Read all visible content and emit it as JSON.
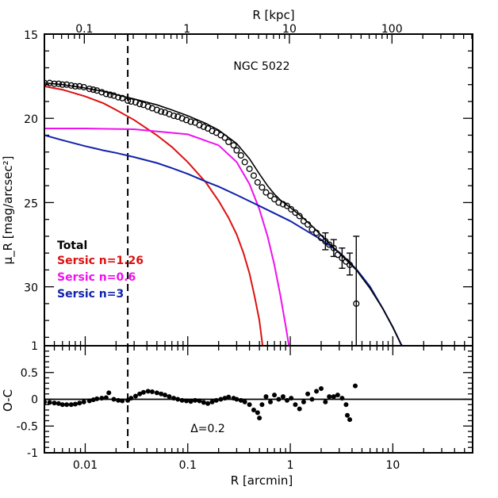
{
  "chart_data": [
    {
      "type": "line",
      "panel": "surface-brightness-profile",
      "title": "NGC 5022",
      "xlabel": "",
      "x_scale": "log",
      "xlim": [
        0.004,
        60
      ],
      "ylabel": "μ_R [mag/arcsec²]",
      "ylim": [
        15,
        34
      ],
      "y_inverted": true,
      "y_ticks": [
        15,
        20,
        25,
        30
      ],
      "top_axis": {
        "label": "R [kpc]",
        "ticks": [
          {
            "value": 0.1,
            "label": "0.1"
          },
          {
            "value": 1,
            "label": "1"
          },
          {
            "value": 10,
            "label": "10"
          },
          {
            "value": 100,
            "label": "100"
          }
        ]
      },
      "vertical_line": {
        "x": 0.026,
        "style": "dashed"
      },
      "legend": {
        "placement": "lower-left",
        "entries": [
          {
            "label": "Total",
            "color": "#000000"
          },
          {
            "label": "Sersic n=1.26",
            "color": "#dd1111"
          },
          {
            "label": "Sersic n=0.6",
            "color": "#ee11ee"
          },
          {
            "label": "Sersic n=3",
            "color": "#1122aa"
          }
        ]
      },
      "series": [
        {
          "name": "Total",
          "color": "#000000",
          "x": [
            0.004,
            0.006,
            0.01,
            0.015,
            0.02,
            0.03,
            0.05,
            0.07,
            0.1,
            0.15,
            0.2,
            0.3,
            0.4,
            0.5,
            0.6,
            0.7,
            0.8,
            1.0,
            1.3,
            1.7,
            2.2,
            3.0,
            4.4,
            6,
            8,
            10,
            12,
            14
          ],
          "y": [
            17.9,
            18.0,
            18.2,
            18.4,
            18.6,
            18.85,
            19.2,
            19.5,
            19.85,
            20.3,
            20.7,
            21.5,
            22.4,
            23.3,
            24.0,
            24.5,
            24.85,
            25.3,
            25.85,
            26.5,
            27.2,
            28.0,
            29.0,
            30.1,
            31.3,
            32.4,
            33.4,
            34.0
          ]
        },
        {
          "name": "Sersic n=1.26",
          "color": "#dd1111",
          "x": [
            0.004,
            0.006,
            0.01,
            0.015,
            0.02,
            0.03,
            0.05,
            0.07,
            0.1,
            0.15,
            0.2,
            0.25,
            0.3,
            0.35,
            0.4,
            0.45,
            0.5,
            0.55
          ],
          "y": [
            18.1,
            18.3,
            18.7,
            19.1,
            19.5,
            20.1,
            21.0,
            21.7,
            22.6,
            23.8,
            24.9,
            25.9,
            26.9,
            28.0,
            29.2,
            30.6,
            32.0,
            34.0
          ]
        },
        {
          "name": "Sersic n=0.6",
          "color": "#ee11ee",
          "x": [
            0.004,
            0.01,
            0.03,
            0.1,
            0.2,
            0.3,
            0.4,
            0.5,
            0.6,
            0.7,
            0.8,
            0.9,
            1.0
          ],
          "y": [
            20.6,
            20.6,
            20.65,
            20.95,
            21.6,
            22.6,
            23.9,
            25.4,
            27.0,
            28.7,
            30.5,
            32.3,
            34.0
          ]
        },
        {
          "name": "Sersic n=3",
          "color": "#1122aa",
          "x": [
            0.004,
            0.006,
            0.01,
            0.015,
            0.02,
            0.03,
            0.05,
            0.07,
            0.1,
            0.15,
            0.2,
            0.3,
            0.5,
            1.0,
            2.0,
            3.0,
            4.4,
            6,
            8,
            10,
            12,
            14
          ],
          "y": [
            21.0,
            21.3,
            21.65,
            21.9,
            22.05,
            22.3,
            22.65,
            22.95,
            23.3,
            23.75,
            24.05,
            24.55,
            25.2,
            26.1,
            27.2,
            27.95,
            28.95,
            30.0,
            31.3,
            32.4,
            33.4,
            34.0
          ]
        }
      ],
      "observed_points": {
        "x": [
          0.004,
          0.0045,
          0.005,
          0.0055,
          0.006,
          0.0066,
          0.0073,
          0.008,
          0.0088,
          0.0097,
          0.011,
          0.012,
          0.013,
          0.0145,
          0.016,
          0.0175,
          0.019,
          0.021,
          0.023,
          0.026,
          0.028,
          0.031,
          0.034,
          0.037,
          0.041,
          0.045,
          0.05,
          0.055,
          0.06,
          0.066,
          0.073,
          0.08,
          0.088,
          0.097,
          0.107,
          0.118,
          0.13,
          0.143,
          0.157,
          0.173,
          0.19,
          0.21,
          0.23,
          0.25,
          0.28,
          0.3,
          0.33,
          0.36,
          0.4,
          0.44,
          0.48,
          0.53,
          0.58,
          0.64,
          0.7,
          0.77,
          0.85,
          0.93,
          1.02,
          1.12,
          1.23,
          1.35,
          1.48,
          1.63,
          1.8,
          2.0,
          2.2,
          2.4,
          2.65,
          2.9,
          3.2,
          3.5,
          3.8,
          4.4
        ],
        "y": [
          17.9,
          17.9,
          17.95,
          17.95,
          18.0,
          18.0,
          18.05,
          18.1,
          18.1,
          18.15,
          18.25,
          18.3,
          18.35,
          18.45,
          18.55,
          18.6,
          18.65,
          18.75,
          18.8,
          18.95,
          19.0,
          19.05,
          19.15,
          19.2,
          19.3,
          19.4,
          19.5,
          19.6,
          19.65,
          19.75,
          19.85,
          19.9,
          20.0,
          20.1,
          20.2,
          20.25,
          20.4,
          20.5,
          20.6,
          20.75,
          20.85,
          21.0,
          21.15,
          21.4,
          21.6,
          21.9,
          22.2,
          22.6,
          23.0,
          23.4,
          23.8,
          24.1,
          24.4,
          24.6,
          24.8,
          25.0,
          25.1,
          25.2,
          25.4,
          25.6,
          25.8,
          26.1,
          26.3,
          26.6,
          26.8,
          27.1,
          27.3,
          27.5,
          27.7,
          28.1,
          28.3,
          28.5,
          28.7,
          31.0
        ],
        "error_bars": [
          {
            "x": 2.2,
            "low": 26.8,
            "high": 27.8
          },
          {
            "x": 2.65,
            "low": 27.2,
            "high": 28.2
          },
          {
            "x": 3.2,
            "low": 27.7,
            "high": 28.9
          },
          {
            "x": 3.8,
            "low": 28.0,
            "high": 29.3
          },
          {
            "x": 4.4,
            "low": 27.0,
            "high": 34.0
          }
        ]
      }
    },
    {
      "type": "scatter",
      "panel": "residuals",
      "xlabel": "R [arcmin]",
      "ylabel": "O-C",
      "x_scale": "log",
      "xlim": [
        0.004,
        60
      ],
      "ylim": [
        -1,
        1
      ],
      "x_ticks": [
        {
          "value": 0.01,
          "label": "0.01"
        },
        {
          "value": 0.1,
          "label": "0.1"
        },
        {
          "value": 1,
          "label": "1"
        },
        {
          "value": 10,
          "label": "10"
        }
      ],
      "y_ticks": [
        {
          "value": 1,
          "label": "1"
        },
        {
          "value": 0.5,
          "label": "0.5"
        },
        {
          "value": 0,
          "label": "0"
        },
        {
          "value": -0.5,
          "label": "-0.5"
        },
        {
          "value": -1,
          "label": "-1"
        }
      ],
      "annotation": "Δ=0.2",
      "reference_line": 0,
      "vertical_line": {
        "x": 0.026,
        "style": "dashed"
      },
      "x": [
        0.004,
        0.0045,
        0.005,
        0.0055,
        0.006,
        0.0066,
        0.0073,
        0.008,
        0.0088,
        0.0097,
        0.011,
        0.012,
        0.013,
        0.0145,
        0.016,
        0.017,
        0.019,
        0.021,
        0.023,
        0.026,
        0.028,
        0.031,
        0.034,
        0.037,
        0.041,
        0.045,
        0.05,
        0.055,
        0.06,
        0.066,
        0.073,
        0.08,
        0.088,
        0.097,
        0.107,
        0.118,
        0.13,
        0.143,
        0.157,
        0.173,
        0.19,
        0.21,
        0.23,
        0.25,
        0.28,
        0.3,
        0.33,
        0.36,
        0.4,
        0.44,
        0.48,
        0.5,
        0.53,
        0.58,
        0.64,
        0.7,
        0.77,
        0.85,
        0.93,
        1.02,
        1.12,
        1.23,
        1.35,
        1.48,
        1.63,
        1.8,
        2.0,
        2.2,
        2.4,
        2.65,
        2.9,
        3.2,
        3.5,
        3.6,
        3.8,
        4.3
      ],
      "y": [
        -0.05,
        -0.06,
        -0.07,
        -0.08,
        -0.1,
        -0.1,
        -0.1,
        -0.09,
        -0.07,
        -0.05,
        -0.03,
        -0.01,
        0.01,
        0.02,
        0.03,
        0.12,
        0.0,
        -0.02,
        -0.03,
        -0.02,
        0.02,
        0.06,
        0.1,
        0.13,
        0.15,
        0.14,
        0.12,
        0.1,
        0.08,
        0.05,
        0.02,
        0.0,
        -0.02,
        -0.03,
        -0.04,
        -0.02,
        -0.03,
        -0.06,
        -0.08,
        -0.05,
        -0.02,
        0.0,
        0.02,
        0.04,
        0.02,
        0.0,
        -0.02,
        -0.05,
        -0.1,
        -0.2,
        -0.25,
        -0.35,
        -0.1,
        0.05,
        -0.05,
        0.08,
        0.0,
        0.05,
        -0.02,
        0.02,
        -0.1,
        -0.18,
        -0.05,
        0.1,
        0.0,
        0.15,
        0.2,
        -0.05,
        0.05,
        0.05,
        0.08,
        0.02,
        -0.1,
        -0.3,
        -0.38,
        0.25
      ]
    }
  ]
}
